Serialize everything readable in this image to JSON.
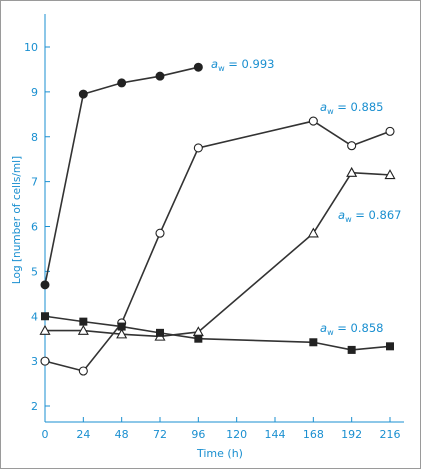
{
  "colors": {
    "axis_text": "#1a8fd0",
    "axis_line": "#1a8fd0",
    "series_line": "#333333",
    "marker_fill_dark": "#222222",
    "marker_stroke": "#222222",
    "frame": "#9a9a9a"
  },
  "chart_data": {
    "type": "line",
    "xlabel": "Time (h)",
    "ylabel": "Log [number of cells/ml]",
    "xlim": [
      0,
      225
    ],
    "ylim": [
      1.5,
      10.8
    ],
    "x_ticks": [
      0,
      24,
      48,
      72,
      96,
      120,
      144,
      168,
      192,
      216
    ],
    "y_ticks": [
      2,
      3,
      4,
      5,
      6,
      7,
      8,
      9,
      10
    ],
    "grid": false,
    "series": [
      {
        "symbol": "a",
        "subscript": "w",
        "value_text": " = 0.993",
        "marker": "filled-circle",
        "x": [
          0,
          24,
          48,
          72,
          96
        ],
        "y": [
          4.7,
          8.95,
          9.2,
          9.35,
          9.55
        ]
      },
      {
        "symbol": "a",
        "subscript": "w",
        "value_text": " = 0.885",
        "marker": "open-circle",
        "x": [
          0,
          24,
          48,
          72,
          96,
          168,
          192,
          216
        ],
        "y": [
          3.0,
          2.78,
          3.85,
          5.85,
          7.75,
          8.35,
          7.8,
          8.12
        ]
      },
      {
        "symbol": "a",
        "subscript": "w",
        "value_text": " = 0.867",
        "marker": "open-triangle",
        "x": [
          0,
          24,
          48,
          72,
          96,
          168,
          192,
          216
        ],
        "y": [
          3.68,
          3.68,
          3.6,
          3.55,
          3.65,
          5.85,
          7.2,
          7.15
        ]
      },
      {
        "symbol": "a",
        "subscript": "w",
        "value_text": " = 0.858",
        "marker": "filled-square",
        "x": [
          0,
          24,
          48,
          72,
          96,
          168,
          192,
          216
        ],
        "y": [
          4.0,
          3.88,
          3.77,
          3.63,
          3.5,
          3.42,
          3.25,
          3.33
        ]
      }
    ]
  }
}
